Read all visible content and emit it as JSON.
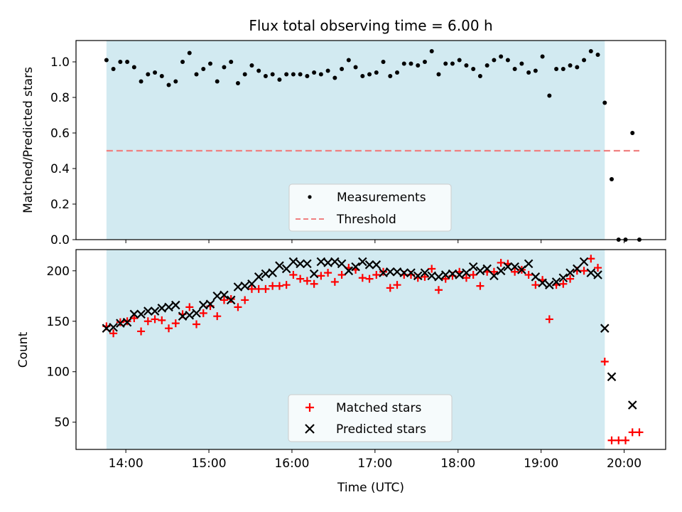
{
  "chart_data": [
    {
      "type": "scatter",
      "title": "Flux total observing time = 6.00 h",
      "xlabel": "",
      "ylabel": "Matched/Predicted stars",
      "ylim": [
        0,
        1.12
      ],
      "yticks": [
        0.0,
        0.2,
        0.4,
        0.6,
        0.8,
        1.0
      ],
      "ytick_labels": [
        "0.0",
        "0.2",
        "0.4",
        "0.6",
        "0.8",
        "1.0"
      ],
      "xlim": [
        "13:24",
        "20:30"
      ],
      "shaded_range": [
        "13:46",
        "19:46"
      ],
      "shade_color": "#add8e6",
      "legend_position": "lower center",
      "series": [
        {
          "name": "Measurements",
          "marker": "dot",
          "color": "#000000",
          "points": [
            [
              "13:46",
              1.01
            ],
            [
              "13:51",
              0.96
            ],
            [
              "13:56",
              1.0
            ],
            [
              "14:01",
              1.0
            ],
            [
              "14:06",
              0.97
            ],
            [
              "14:11",
              0.89
            ],
            [
              "14:16",
              0.93
            ],
            [
              "14:21",
              0.94
            ],
            [
              "14:26",
              0.92
            ],
            [
              "14:31",
              0.87
            ],
            [
              "14:36",
              0.89
            ],
            [
              "14:41",
              1.0
            ],
            [
              "14:46",
              1.05
            ],
            [
              "14:51",
              0.93
            ],
            [
              "14:56",
              0.96
            ],
            [
              "15:01",
              0.99
            ],
            [
              "15:06",
              0.89
            ],
            [
              "15:11",
              0.97
            ],
            [
              "15:16",
              1.0
            ],
            [
              "15:21",
              0.88
            ],
            [
              "15:26",
              0.93
            ],
            [
              "15:31",
              0.98
            ],
            [
              "15:36",
              0.95
            ],
            [
              "15:41",
              0.92
            ],
            [
              "15:46",
              0.93
            ],
            [
              "15:51",
              0.9
            ],
            [
              "15:56",
              0.93
            ],
            [
              "16:01",
              0.93
            ],
            [
              "16:06",
              0.93
            ],
            [
              "16:11",
              0.92
            ],
            [
              "16:16",
              0.94
            ],
            [
              "16:21",
              0.93
            ],
            [
              "16:26",
              0.95
            ],
            [
              "16:31",
              0.91
            ],
            [
              "16:36",
              0.96
            ],
            [
              "16:41",
              1.01
            ],
            [
              "16:46",
              0.97
            ],
            [
              "16:51",
              0.92
            ],
            [
              "16:56",
              0.93
            ],
            [
              "17:01",
              0.94
            ],
            [
              "17:06",
              1.0
            ],
            [
              "17:11",
              0.92
            ],
            [
              "17:16",
              0.94
            ],
            [
              "17:21",
              0.99
            ],
            [
              "17:26",
              0.99
            ],
            [
              "17:31",
              0.98
            ],
            [
              "17:36",
              1.0
            ],
            [
              "17:41",
              1.06
            ],
            [
              "17:46",
              0.93
            ],
            [
              "17:51",
              0.99
            ],
            [
              "17:56",
              0.99
            ],
            [
              "18:01",
              1.01
            ],
            [
              "18:06",
              0.98
            ],
            [
              "18:11",
              0.96
            ],
            [
              "18:16",
              0.92
            ],
            [
              "18:21",
              0.98
            ],
            [
              "18:26",
              1.01
            ],
            [
              "18:31",
              1.03
            ],
            [
              "18:36",
              1.01
            ],
            [
              "18:41",
              0.96
            ],
            [
              "18:46",
              0.99
            ],
            [
              "18:51",
              0.94
            ],
            [
              "18:56",
              0.95
            ],
            [
              "19:01",
              1.03
            ],
            [
              "19:06",
              0.81
            ],
            [
              "19:11",
              0.96
            ],
            [
              "19:16",
              0.96
            ],
            [
              "19:21",
              0.98
            ],
            [
              "19:26",
              0.97
            ],
            [
              "19:31",
              1.01
            ],
            [
              "19:36",
              1.06
            ],
            [
              "19:41",
              1.04
            ],
            [
              "19:46",
              0.77
            ],
            [
              "19:51",
              0.34
            ],
            [
              "19:56",
              0.0
            ],
            [
              "20:01",
              0.0
            ],
            [
              "20:06",
              0.6
            ],
            [
              "20:11",
              0.0
            ]
          ]
        },
        {
          "name": "Threshold",
          "marker": "dashed-line",
          "color": "#f08080",
          "points": [
            [
              "13:46",
              0.5
            ],
            [
              "20:11",
              0.5
            ]
          ]
        }
      ]
    },
    {
      "type": "scatter",
      "title": "",
      "xlabel": "Time (UTC)",
      "ylabel": "Count",
      "ylim": [
        23,
        221
      ],
      "yticks": [
        50,
        100,
        150,
        200
      ],
      "ytick_labels": [
        "50",
        "100",
        "150",
        "200"
      ],
      "xlim": [
        "13:24",
        "20:30"
      ],
      "xticks": [
        "14:00",
        "15:00",
        "16:00",
        "17:00",
        "18:00",
        "19:00",
        "20:00"
      ],
      "xtick_labels": [
        "14:00",
        "15:00",
        "16:00",
        "17:00",
        "18:00",
        "19:00",
        "20:00"
      ],
      "shaded_range": [
        "13:46",
        "19:46"
      ],
      "shade_color": "#add8e6",
      "legend_position": "lower center",
      "series": [
        {
          "name": "Matched stars",
          "marker": "plus",
          "color": "#ff0000",
          "points": [
            [
              "13:46",
              145
            ],
            [
              "13:51",
              138
            ],
            [
              "13:56",
              149
            ],
            [
              "14:01",
              150
            ],
            [
              "14:06",
              153
            ],
            [
              "14:11",
              140
            ],
            [
              "14:16",
              150
            ],
            [
              "14:21",
              152
            ],
            [
              "14:26",
              151
            ],
            [
              "14:31",
              143
            ],
            [
              "14:36",
              148
            ],
            [
              "14:41",
              157
            ],
            [
              "14:46",
              164
            ],
            [
              "14:51",
              147
            ],
            [
              "14:56",
              158
            ],
            [
              "15:01",
              165
            ],
            [
              "15:06",
              155
            ],
            [
              "15:11",
              171
            ],
            [
              "15:16",
              172
            ],
            [
              "15:21",
              164
            ],
            [
              "15:26",
              171
            ],
            [
              "15:31",
              182
            ],
            [
              "15:36",
              182
            ],
            [
              "15:41",
              182
            ],
            [
              "15:46",
              185
            ],
            [
              "15:51",
              185
            ],
            [
              "15:56",
              186
            ],
            [
              "16:01",
              196
            ],
            [
              "16:06",
              192
            ],
            [
              "16:11",
              190
            ],
            [
              "16:16",
              187
            ],
            [
              "16:21",
              195
            ],
            [
              "16:26",
              198
            ],
            [
              "16:31",
              189
            ],
            [
              "16:36",
              196
            ],
            [
              "16:41",
              203
            ],
            [
              "16:46",
              201
            ],
            [
              "16:51",
              193
            ],
            [
              "16:56",
              192
            ],
            [
              "17:01",
              196
            ],
            [
              "17:06",
              199
            ],
            [
              "17:11",
              183
            ],
            [
              "17:16",
              186
            ],
            [
              "17:21",
              196
            ],
            [
              "17:26",
              196
            ],
            [
              "17:31",
              193
            ],
            [
              "17:36",
              194
            ],
            [
              "17:41",
              202
            ],
            [
              "17:46",
              181
            ],
            [
              "17:51",
              192
            ],
            [
              "17:56",
              195
            ],
            [
              "18:01",
              199
            ],
            [
              "18:06",
              193
            ],
            [
              "18:11",
              196
            ],
            [
              "18:16",
              185
            ],
            [
              "18:21",
              199
            ],
            [
              "18:26",
              199
            ],
            [
              "18:31",
              208
            ],
            [
              "18:36",
              207
            ],
            [
              "18:41",
              199
            ],
            [
              "18:46",
              201
            ],
            [
              "18:51",
              196
            ],
            [
              "18:56",
              186
            ],
            [
              "19:01",
              191
            ],
            [
              "19:06",
              152
            ],
            [
              "19:11",
              186
            ],
            [
              "19:16",
              187
            ],
            [
              "19:21",
              192
            ],
            [
              "19:26",
              200
            ],
            [
              "19:31",
              200
            ],
            [
              "19:36",
              212
            ],
            [
              "19:41",
              203
            ],
            [
              "19:46",
              110
            ],
            [
              "19:51",
              32
            ],
            [
              "19:56",
              32
            ],
            [
              "20:01",
              32
            ],
            [
              "20:06",
              40
            ],
            [
              "20:11",
              40
            ]
          ]
        },
        {
          "name": "Predicted stars",
          "marker": "x",
          "color": "#000000",
          "points": [
            [
              "13:46",
              143
            ],
            [
              "13:51",
              144
            ],
            [
              "13:56",
              148
            ],
            [
              "14:01",
              149
            ],
            [
              "14:06",
              157
            ],
            [
              "14:11",
              157
            ],
            [
              "14:16",
              160
            ],
            [
              "14:21",
              160
            ],
            [
              "14:26",
              163
            ],
            [
              "14:31",
              164
            ],
            [
              "14:36",
              166
            ],
            [
              "14:41",
              155
            ],
            [
              "14:46",
              156
            ],
            [
              "14:51",
              158
            ],
            [
              "14:56",
              166
            ],
            [
              "15:01",
              167
            ],
            [
              "15:06",
              175
            ],
            [
              "15:11",
              176
            ],
            [
              "15:16",
              171
            ],
            [
              "15:21",
              184
            ],
            [
              "15:26",
              185
            ],
            [
              "15:31",
              187
            ],
            [
              "15:36",
              194
            ],
            [
              "15:41",
              197
            ],
            [
              "15:46",
              198
            ],
            [
              "15:51",
              205
            ],
            [
              "15:56",
              202
            ],
            [
              "16:01",
              209
            ],
            [
              "16:06",
              207
            ],
            [
              "16:11",
              207
            ],
            [
              "16:16",
              197
            ],
            [
              "16:21",
              209
            ],
            [
              "16:26",
              208
            ],
            [
              "16:31",
              209
            ],
            [
              "16:36",
              207
            ],
            [
              "16:41",
              200
            ],
            [
              "16:46",
              204
            ],
            [
              "16:51",
              209
            ],
            [
              "16:56",
              206
            ],
            [
              "17:01",
              206
            ],
            [
              "17:06",
              198
            ],
            [
              "17:11",
              199
            ],
            [
              "17:16",
              199
            ],
            [
              "17:21",
              198
            ],
            [
              "17:26",
              198
            ],
            [
              "17:31",
              195
            ],
            [
              "17:36",
              198
            ],
            [
              "17:41",
              195
            ],
            [
              "17:46",
              194
            ],
            [
              "17:51",
              196
            ],
            [
              "17:56",
              197
            ],
            [
              "18:01",
              196
            ],
            [
              "18:06",
              198
            ],
            [
              "18:11",
              204
            ],
            [
              "18:16",
              200
            ],
            [
              "18:21",
              202
            ],
            [
              "18:26",
              195
            ],
            [
              "18:31",
              200
            ],
            [
              "18:36",
              204
            ],
            [
              "18:41",
              204
            ],
            [
              "18:46",
              201
            ],
            [
              "18:51",
              207
            ],
            [
              "18:56",
              194
            ],
            [
              "19:01",
              188
            ],
            [
              "19:06",
              186
            ],
            [
              "19:11",
              189
            ],
            [
              "19:16",
              193
            ],
            [
              "19:21",
              198
            ],
            [
              "19:26",
              202
            ],
            [
              "19:31",
              209
            ],
            [
              "19:36",
              198
            ],
            [
              "19:41",
              196
            ],
            [
              "19:46",
              143
            ],
            [
              "19:51",
              95
            ],
            [
              "20:06",
              67
            ]
          ]
        }
      ]
    }
  ]
}
